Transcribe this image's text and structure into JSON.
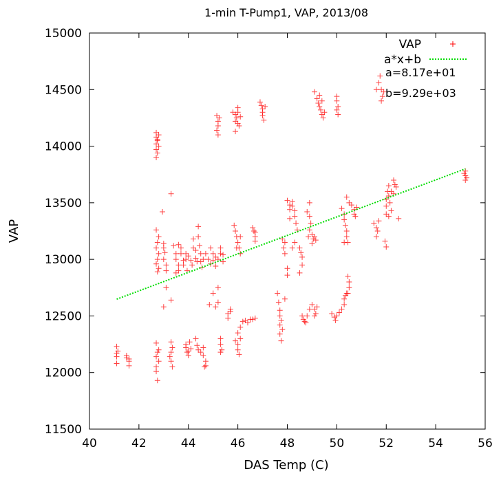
{
  "chart_data": {
    "type": "scatter",
    "title": "1-min T-Pump1, VAP, 2013/08",
    "xlabel": "DAS Temp (C)",
    "ylabel": "VAP",
    "xlim": [
      40,
      56
    ],
    "ylim": [
      11500,
      15000
    ],
    "x_ticks": [
      40,
      42,
      44,
      46,
      48,
      50,
      52,
      54,
      56
    ],
    "y_ticks": [
      11500,
      12000,
      12500,
      13000,
      13500,
      14000,
      14500,
      15000
    ],
    "grid": false,
    "legend_position": "top-right",
    "colors": {
      "scatter": "#ff0000",
      "fit": "#00dd00"
    },
    "series": [
      {
        "name": "VAP",
        "marker": "plus",
        "points": [
          [
            41.1,
            12230
          ],
          [
            41.1,
            12170
          ],
          [
            41.1,
            12140
          ],
          [
            41.15,
            12190
          ],
          [
            41.1,
            12080
          ],
          [
            41.5,
            12150
          ],
          [
            41.6,
            12120
          ],
          [
            41.6,
            12100
          ],
          [
            41.6,
            12060
          ],
          [
            41.5,
            12130
          ],
          [
            42.7,
            14120
          ],
          [
            42.7,
            14080
          ],
          [
            42.75,
            14050
          ],
          [
            42.7,
            14020
          ],
          [
            42.8,
            14000
          ],
          [
            42.7,
            13970
          ],
          [
            42.75,
            13940
          ],
          [
            42.7,
            13900
          ],
          [
            42.8,
            14100
          ],
          [
            42.75,
            14060
          ],
          [
            42.7,
            12260
          ],
          [
            42.75,
            12180
          ],
          [
            42.7,
            12140
          ],
          [
            42.8,
            12100
          ],
          [
            42.7,
            12050
          ],
          [
            42.75,
            11930
          ],
          [
            42.8,
            12200
          ],
          [
            42.7,
            12010
          ],
          [
            42.7,
            13260
          ],
          [
            42.8,
            13200
          ],
          [
            42.75,
            13150
          ],
          [
            42.7,
            13100
          ],
          [
            42.8,
            13050
          ],
          [
            42.75,
            13000
          ],
          [
            42.7,
            12960
          ],
          [
            42.8,
            12920
          ],
          [
            42.75,
            12890
          ],
          [
            43.0,
            13140
          ],
          [
            43.0,
            13100
          ],
          [
            43.05,
            13060
          ],
          [
            43.0,
            13000
          ],
          [
            43.1,
            12950
          ],
          [
            42.95,
            13420
          ],
          [
            43.1,
            12750
          ],
          [
            43.0,
            12580
          ],
          [
            43.1,
            12900
          ],
          [
            43.3,
            13580
          ],
          [
            43.3,
            12640
          ],
          [
            43.3,
            12270
          ],
          [
            43.35,
            12220
          ],
          [
            43.3,
            12180
          ],
          [
            43.25,
            12140
          ],
          [
            43.3,
            12100
          ],
          [
            43.35,
            12050
          ],
          [
            43.4,
            13120
          ],
          [
            43.5,
            13050
          ],
          [
            43.5,
            13000
          ],
          [
            43.6,
            12950
          ],
          [
            43.6,
            12900
          ],
          [
            43.7,
            13100
          ],
          [
            43.7,
            13050
          ],
          [
            43.8,
            12990
          ],
          [
            43.8,
            12950
          ],
          [
            43.9,
            13000
          ],
          [
            43.9,
            13050
          ],
          [
            43.95,
            12900
          ],
          [
            43.5,
            12880
          ],
          [
            43.6,
            13130
          ],
          [
            43.9,
            12250
          ],
          [
            43.9,
            12220
          ],
          [
            44.0,
            12190
          ],
          [
            44.0,
            12150
          ],
          [
            44.05,
            12270
          ],
          [
            44.1,
            12210
          ],
          [
            43.95,
            12180
          ],
          [
            44.0,
            13030
          ],
          [
            44.1,
            12990
          ],
          [
            44.15,
            12950
          ],
          [
            44.2,
            13100
          ],
          [
            44.2,
            13180
          ],
          [
            44.3,
            13080
          ],
          [
            44.3,
            13010
          ],
          [
            44.35,
            12980
          ],
          [
            44.4,
            13290
          ],
          [
            44.4,
            13200
          ],
          [
            44.45,
            13120
          ],
          [
            44.5,
            13050
          ],
          [
            44.5,
            12980
          ],
          [
            44.55,
            12930
          ],
          [
            44.6,
            13000
          ],
          [
            44.3,
            12300
          ],
          [
            44.35,
            12240
          ],
          [
            44.4,
            12200
          ],
          [
            44.5,
            12180
          ],
          [
            44.6,
            12220
          ],
          [
            44.6,
            12150
          ],
          [
            44.7,
            12100
          ],
          [
            44.65,
            12050
          ],
          [
            44.7,
            12060
          ],
          [
            44.7,
            13050
          ],
          [
            44.8,
            13000
          ],
          [
            44.9,
            12960
          ],
          [
            44.9,
            13100
          ],
          [
            45.0,
            13050
          ],
          [
            45.0,
            12990
          ],
          [
            45.1,
            13020
          ],
          [
            45.1,
            12940
          ],
          [
            45.2,
            13000
          ],
          [
            45.3,
            13050
          ],
          [
            45.3,
            13100
          ],
          [
            45.4,
            12980
          ],
          [
            45.4,
            13040
          ],
          [
            44.85,
            12600
          ],
          [
            45.0,
            12700
          ],
          [
            45.2,
            12750
          ],
          [
            45.1,
            12580
          ],
          [
            45.2,
            12620
          ],
          [
            45.3,
            12300
          ],
          [
            45.3,
            12250
          ],
          [
            45.35,
            12200
          ],
          [
            45.3,
            12180
          ],
          [
            45.15,
            14270
          ],
          [
            45.2,
            14220
          ],
          [
            45.2,
            14180
          ],
          [
            45.15,
            14140
          ],
          [
            45.2,
            14100
          ],
          [
            45.25,
            14250
          ],
          [
            45.6,
            12520
          ],
          [
            45.6,
            12480
          ],
          [
            45.7,
            12560
          ],
          [
            45.7,
            12540
          ],
          [
            45.8,
            14300
          ],
          [
            45.9,
            14280
          ],
          [
            45.95,
            14250
          ],
          [
            45.9,
            14220
          ],
          [
            46.0,
            14340
          ],
          [
            46.0,
            14200
          ],
          [
            46.05,
            14180
          ],
          [
            45.9,
            14130
          ],
          [
            46.0,
            14300
          ],
          [
            46.1,
            14260
          ],
          [
            45.85,
            13300
          ],
          [
            45.9,
            13250
          ],
          [
            45.95,
            13200
          ],
          [
            46.0,
            13150
          ],
          [
            46.05,
            13100
          ],
          [
            46.1,
            13050
          ],
          [
            46.1,
            13200
          ],
          [
            45.95,
            13100
          ],
          [
            45.9,
            12280
          ],
          [
            46.0,
            12250
          ],
          [
            46.0,
            12200
          ],
          [
            46.05,
            12160
          ],
          [
            46.1,
            12300
          ],
          [
            46.0,
            12350
          ],
          [
            46.1,
            12400
          ],
          [
            46.6,
            13280
          ],
          [
            46.7,
            13240
          ],
          [
            46.7,
            13200
          ],
          [
            46.7,
            13160
          ],
          [
            46.65,
            13250
          ],
          [
            46.3,
            12460
          ],
          [
            46.4,
            12440
          ],
          [
            46.5,
            12470
          ],
          [
            46.6,
            12470
          ],
          [
            46.7,
            12480
          ],
          [
            46.2,
            12450
          ],
          [
            46.9,
            14390
          ],
          [
            46.95,
            14360
          ],
          [
            47.0,
            14330
          ],
          [
            47.0,
            14300
          ],
          [
            47.1,
            14350
          ],
          [
            47.0,
            14270
          ],
          [
            47.05,
            14230
          ],
          [
            47.6,
            12700
          ],
          [
            47.65,
            12620
          ],
          [
            47.7,
            12550
          ],
          [
            47.7,
            12500
          ],
          [
            47.75,
            12460
          ],
          [
            47.7,
            12420
          ],
          [
            47.8,
            12380
          ],
          [
            47.7,
            12340
          ],
          [
            47.75,
            12280
          ],
          [
            47.8,
            13180
          ],
          [
            47.9,
            13150
          ],
          [
            47.85,
            13100
          ],
          [
            47.9,
            13050
          ],
          [
            48.0,
            12920
          ],
          [
            48.0,
            12860
          ],
          [
            47.9,
            12650
          ],
          [
            48.0,
            13520
          ],
          [
            48.1,
            13480
          ],
          [
            48.1,
            13440
          ],
          [
            48.2,
            13510
          ],
          [
            48.2,
            13470
          ],
          [
            48.3,
            13430
          ],
          [
            48.3,
            13380
          ],
          [
            48.35,
            13320
          ],
          [
            48.4,
            13260
          ],
          [
            48.1,
            13360
          ],
          [
            48.2,
            13100
          ],
          [
            48.3,
            13150
          ],
          [
            48.5,
            13100
          ],
          [
            48.55,
            13060
          ],
          [
            48.6,
            13020
          ],
          [
            48.6,
            12950
          ],
          [
            48.5,
            12880
          ],
          [
            48.6,
            12500
          ],
          [
            48.65,
            12470
          ],
          [
            48.7,
            12450
          ],
          [
            48.8,
            12500
          ],
          [
            48.9,
            12560
          ],
          [
            48.75,
            12440
          ],
          [
            48.8,
            13420
          ],
          [
            48.9,
            13380
          ],
          [
            48.95,
            13320
          ],
          [
            48.9,
            13260
          ],
          [
            48.85,
            13200
          ],
          [
            48.9,
            13500
          ],
          [
            49.0,
            13220
          ],
          [
            49.05,
            13180
          ],
          [
            49.1,
            13200
          ],
          [
            49.15,
            13170
          ],
          [
            49.0,
            13140
          ],
          [
            49.0,
            12600
          ],
          [
            49.1,
            12560
          ],
          [
            49.15,
            12520
          ],
          [
            49.2,
            12580
          ],
          [
            49.1,
            12500
          ],
          [
            49.1,
            14480
          ],
          [
            49.2,
            14420
          ],
          [
            49.25,
            14380
          ],
          [
            49.3,
            14350
          ],
          [
            49.35,
            14320
          ],
          [
            49.4,
            14280
          ],
          [
            49.45,
            14250
          ],
          [
            49.5,
            14300
          ],
          [
            49.4,
            14400
          ],
          [
            49.3,
            14450
          ],
          [
            49.8,
            12520
          ],
          [
            49.9,
            12490
          ],
          [
            49.95,
            12460
          ],
          [
            50.0,
            12500
          ],
          [
            50.1,
            12530
          ],
          [
            50.2,
            12560
          ],
          [
            50.3,
            12600
          ],
          [
            50.3,
            12650
          ],
          [
            50.4,
            12700
          ],
          [
            50.35,
            12680
          ],
          [
            50.0,
            14440
          ],
          [
            50.0,
            14400
          ],
          [
            50.05,
            14350
          ],
          [
            50.0,
            14320
          ],
          [
            50.05,
            14280
          ],
          [
            50.2,
            13450
          ],
          [
            50.3,
            13400
          ],
          [
            50.3,
            13350
          ],
          [
            50.35,
            13300
          ],
          [
            50.4,
            13250
          ],
          [
            50.4,
            13200
          ],
          [
            50.45,
            13150
          ],
          [
            50.5,
            13500
          ],
          [
            50.4,
            13550
          ],
          [
            50.3,
            13150
          ],
          [
            50.45,
            12850
          ],
          [
            50.5,
            12800
          ],
          [
            50.5,
            12750
          ],
          [
            50.45,
            12700
          ],
          [
            50.6,
            13480
          ],
          [
            50.7,
            13440
          ],
          [
            50.7,
            13400
          ],
          [
            50.8,
            13460
          ],
          [
            50.75,
            13380
          ],
          [
            51.5,
            13320
          ],
          [
            51.6,
            13280
          ],
          [
            51.65,
            13250
          ],
          [
            51.6,
            13200
          ],
          [
            51.7,
            13340
          ],
          [
            51.6,
            14500
          ],
          [
            51.7,
            14560
          ],
          [
            51.75,
            14620
          ],
          [
            51.8,
            14500
          ],
          [
            51.85,
            14440
          ],
          [
            51.9,
            14480
          ],
          [
            51.8,
            14400
          ],
          [
            52.0,
            13530
          ],
          [
            52.05,
            13600
          ],
          [
            52.1,
            13650
          ],
          [
            52.1,
            13560
          ],
          [
            52.15,
            13500
          ],
          [
            52.0,
            13470
          ],
          [
            52.2,
            13430
          ],
          [
            52.0,
            13400
          ],
          [
            52.1,
            13380
          ],
          [
            52.2,
            13600
          ],
          [
            52.3,
            13700
          ],
          [
            52.35,
            13660
          ],
          [
            52.4,
            13640
          ],
          [
            52.3,
            13580
          ],
          [
            52.5,
            13360
          ],
          [
            52.0,
            13110
          ],
          [
            51.95,
            13160
          ],
          [
            55.2,
            13780
          ],
          [
            55.2,
            13740
          ],
          [
            55.25,
            13720
          ],
          [
            55.2,
            13700
          ],
          [
            55.15,
            13760
          ]
        ]
      },
      {
        "name": "a*x+b",
        "type": "line",
        "x": [
          41.1,
          55.2
        ],
        "y": [
          12648,
          13800
        ]
      }
    ],
    "annotations": [
      "a=8.17e+01",
      "b=9.29e+03"
    ]
  }
}
